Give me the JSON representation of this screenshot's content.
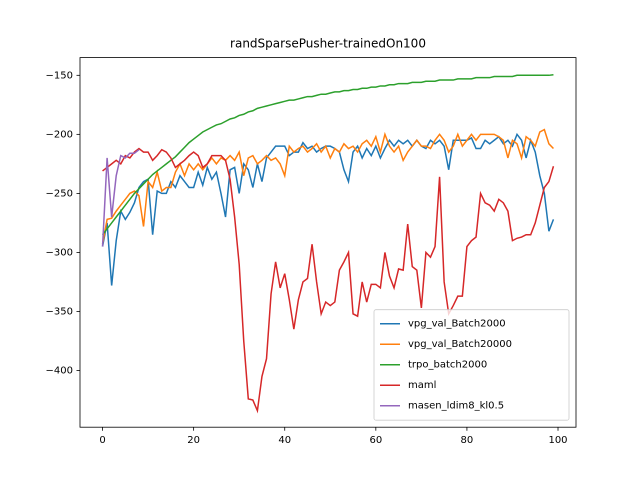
{
  "chart_data": {
    "type": "line",
    "title": "randSparsePusher-trainedOn100",
    "x": [
      0,
      1,
      2,
      3,
      4,
      5,
      6,
      7,
      8,
      9,
      10,
      11,
      12,
      13,
      14,
      15,
      16,
      17,
      18,
      19,
      20,
      21,
      22,
      23,
      24,
      25,
      26,
      27,
      28,
      29,
      30,
      31,
      32,
      33,
      34,
      35,
      36,
      37,
      38,
      39,
      40,
      41,
      42,
      43,
      44,
      45,
      46,
      47,
      48,
      49,
      50,
      51,
      52,
      53,
      54,
      55,
      56,
      57,
      58,
      59,
      60,
      61,
      62,
      63,
      64,
      65,
      66,
      67,
      68,
      69,
      70,
      71,
      72,
      73,
      74,
      75,
      76,
      77,
      78,
      79,
      80,
      81,
      82,
      83,
      84,
      85,
      86,
      87,
      88,
      89,
      90,
      91,
      92,
      93,
      94,
      95,
      96,
      97,
      98,
      99
    ],
    "xlim": [
      -4.95,
      103.95
    ],
    "xticks": [
      0,
      20,
      40,
      60,
      80,
      100
    ],
    "ylim": [
      -448,
      -135
    ],
    "yticks": [
      {
        "value": -400,
        "label": "−400"
      },
      {
        "value": -350,
        "label": "−350"
      },
      {
        "value": -300,
        "label": "−300"
      },
      {
        "value": -250,
        "label": "−250"
      },
      {
        "value": -200,
        "label": "−200"
      },
      {
        "value": -150,
        "label": "−150"
      }
    ],
    "grid": false,
    "legend": "lower right",
    "series": [
      {
        "name": "vpg_val_Batch2000",
        "color": "#1f77b4",
        "values": [
          -295,
          -275,
          -328,
          -290,
          -265,
          -272,
          -266,
          -258,
          -245,
          -240,
          -238,
          -285,
          -248,
          -250,
          -250,
          -240,
          -245,
          -235,
          -240,
          -245,
          -245,
          -232,
          -243,
          -228,
          -238,
          -232,
          -250,
          -270,
          -230,
          -228,
          -250,
          -225,
          -230,
          -245,
          -225,
          -240,
          -220,
          -215,
          -210,
          -210,
          -210,
          -218,
          -215,
          -215,
          -207,
          -212,
          -210,
          -215,
          -212,
          -210,
          -210,
          -212,
          -215,
          -230,
          -240,
          -215,
          -210,
          -220,
          -212,
          -218,
          -210,
          -220,
          -212,
          -205,
          -210,
          -205,
          -208,
          -205,
          -210,
          -205,
          -210,
          -212,
          -205,
          -208,
          -205,
          -210,
          -230,
          -205,
          -205,
          -205,
          -205,
          -203,
          -212,
          -212,
          -205,
          -208,
          -205,
          -202,
          -208,
          -205,
          -210,
          -200,
          -205,
          -220,
          -205,
          -215,
          -235,
          -250,
          -282,
          -272
        ]
      },
      {
        "name": "vpg_val_Batch20000",
        "color": "#ff7f0e",
        "values": [
          -293,
          -272,
          -271,
          -265,
          -260,
          -255,
          -250,
          -248,
          -252,
          -278,
          -240,
          -245,
          -232,
          -248,
          -245,
          -245,
          -232,
          -225,
          -235,
          -225,
          -230,
          -225,
          -230,
          -225,
          -220,
          -225,
          -220,
          -222,
          -218,
          -222,
          -215,
          -235,
          -220,
          -218,
          -225,
          -222,
          -218,
          -222,
          -220,
          -225,
          -235,
          -210,
          -215,
          -212,
          -210,
          -215,
          -212,
          -208,
          -215,
          -210,
          -220,
          -212,
          -215,
          -208,
          -212,
          -210,
          -215,
          -208,
          -205,
          -210,
          -202,
          -215,
          -200,
          -210,
          -215,
          -210,
          -222,
          -215,
          -210,
          -205,
          -210,
          -210,
          -212,
          -205,
          -200,
          -205,
          -215,
          -210,
          -200,
          -210,
          -205,
          -200,
          -205,
          -200,
          -200,
          -200,
          -200,
          -202,
          -205,
          -220,
          -205,
          -208,
          -220,
          -202,
          -205,
          -210,
          -198,
          -196,
          -208,
          -212
        ]
      },
      {
        "name": "trpo_batch2000",
        "color": "#2ca02c",
        "values": [
          -285,
          -280,
          -275,
          -270,
          -265,
          -260,
          -255,
          -250,
          -246,
          -242,
          -238,
          -234,
          -231,
          -228,
          -225,
          -222,
          -219,
          -215,
          -211,
          -207,
          -204,
          -201,
          -198,
          -196,
          -194,
          -192,
          -191,
          -189,
          -187,
          -186,
          -184,
          -183,
          -181,
          -180,
          -178,
          -177,
          -176,
          -175,
          -174,
          -173,
          -172,
          -171,
          -171,
          -170,
          -169,
          -168,
          -168,
          -167,
          -166,
          -166,
          -165,
          -164,
          -164,
          -163,
          -163,
          -162,
          -162,
          -161,
          -161,
          -160,
          -160,
          -159,
          -159,
          -158,
          -158,
          -157,
          -157,
          -157,
          -156,
          -156,
          -156,
          -155,
          -155,
          -155,
          -154,
          -154,
          -154,
          -154,
          -153,
          -153,
          -153,
          -153,
          -152,
          -152,
          -152,
          -152,
          -151,
          -151,
          -151,
          -151,
          -151,
          -150,
          -150,
          -150,
          -150,
          -150,
          -150,
          -150,
          -150,
          -149.5
        ]
      },
      {
        "name": "maml",
        "color": "#d62728",
        "values": [
          -231,
          -228,
          -225,
          -222,
          -225,
          -218,
          -220,
          -215,
          -212,
          -215,
          -215,
          -222,
          -218,
          -213,
          -215,
          -220,
          -228,
          -225,
          -222,
          -218,
          -215,
          -218,
          -228,
          -225,
          -218,
          -218,
          -218,
          -222,
          -238,
          -270,
          -310,
          -375,
          -424,
          -425,
          -434,
          -405,
          -390,
          -335,
          -308,
          -330,
          -318,
          -340,
          -365,
          -340,
          -325,
          -322,
          -293,
          -325,
          -352,
          -342,
          -345,
          -342,
          -315,
          -308,
          -300,
          -352,
          -354,
          -325,
          -342,
          -327,
          -327,
          -330,
          -300,
          -320,
          -330,
          -314,
          -315,
          -276,
          -312,
          -315,
          -347,
          -300,
          -304,
          -295,
          -236,
          -325,
          -352,
          -345,
          -337,
          -337,
          -295,
          -290,
          -287,
          -250,
          -258,
          -260,
          -265,
          -255,
          -258,
          -265,
          -290,
          -288,
          -287,
          -285,
          -285,
          -275,
          -260,
          -245,
          -240,
          -227
        ]
      },
      {
        "name": "masen_ldim8_kl0.5",
        "color": "#9467bd",
        "x": [
          0,
          1,
          2,
          3,
          4,
          5,
          6,
          7,
          8
        ],
        "values": [
          -295,
          -220,
          -270,
          -235,
          -218,
          -220,
          -216,
          -216,
          -213
        ]
      }
    ]
  }
}
